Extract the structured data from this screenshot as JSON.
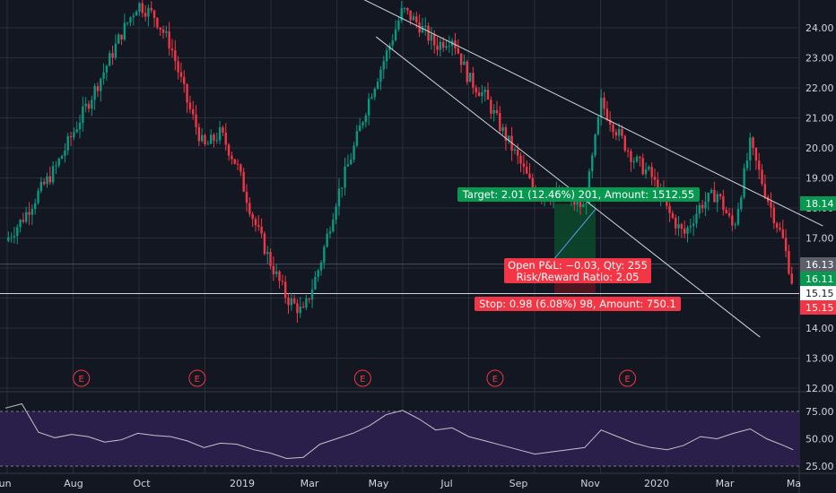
{
  "chart_data": {
    "type": "candlestick",
    "x_axis": {
      "ticks": [
        "Jun",
        "Aug",
        "Oct",
        "2019",
        "Mar",
        "May",
        "Jul",
        "Sep",
        "Nov",
        "2020",
        "Mar",
        "Ma"
      ]
    },
    "price_axis": {
      "ylim": [
        12.0,
        25.0
      ],
      "ticks": [
        "24.00",
        "23.00",
        "22.00",
        "21.00",
        "20.00",
        "19.00",
        "18.00",
        "17.00",
        "16.00",
        "15.00",
        "14.00",
        "13.00",
        "12.00"
      ],
      "price_labels": [
        {
          "text": "18.14",
          "value": 18.14,
          "color": "#089950"
        },
        {
          "text": "16.13",
          "value": 16.13,
          "color": "#5d606b"
        },
        {
          "text": "16.11",
          "value": 16.11,
          "color": "#089950"
        },
        {
          "text": "15.15",
          "value": 15.15,
          "color": "#ffffff"
        },
        {
          "text": "15.15",
          "value": 15.15,
          "color": "#f23645"
        }
      ]
    },
    "price_series": [
      [
        0,
        16.9
      ],
      [
        0.5,
        17.6
      ],
      [
        1,
        18.5
      ],
      [
        1.5,
        19.3
      ],
      [
        2,
        20.4
      ],
      [
        2.5,
        21.5
      ],
      [
        3,
        22.6
      ],
      [
        3.5,
        23.8
      ],
      [
        4,
        24.8
      ],
      [
        4.5,
        24.4
      ],
      [
        5,
        23.4
      ],
      [
        5.5,
        21.5
      ],
      [
        6,
        20.0
      ],
      [
        6.5,
        20.5
      ],
      [
        7,
        19.4
      ],
      [
        7.5,
        17.6
      ],
      [
        8,
        16.2
      ],
      [
        8.5,
        15.0
      ],
      [
        9,
        14.5
      ],
      [
        9.5,
        16.1
      ],
      [
        10,
        18.3
      ],
      [
        10.5,
        19.9
      ],
      [
        11,
        21.7
      ],
      [
        11.5,
        23.1
      ],
      [
        12,
        24.6
      ],
      [
        12.5,
        24.1
      ],
      [
        13,
        23.4
      ],
      [
        13.5,
        23.7
      ],
      [
        14,
        22.3
      ],
      [
        14.5,
        21.7
      ],
      [
        15,
        20.6
      ],
      [
        15.5,
        19.6
      ],
      [
        16,
        18.5
      ],
      [
        16.5,
        18.4
      ],
      [
        17,
        18.3
      ],
      [
        17.5,
        18.0
      ],
      [
        18,
        21.5
      ],
      [
        18.5,
        20.5
      ],
      [
        19,
        19.6
      ],
      [
        19.5,
        19.1
      ],
      [
        20,
        17.9
      ],
      [
        20.5,
        17.1
      ],
      [
        21,
        18.1
      ],
      [
        21.5,
        18.5
      ],
      [
        22,
        17.3
      ],
      [
        22.5,
        20.1
      ],
      [
        23,
        18.4
      ],
      [
        23.5,
        16.9
      ],
      [
        23.8,
        15.4
      ]
    ],
    "trend_lines": [
      {
        "name": "upper",
        "points": [
          [
            9.8,
            25.5
          ],
          [
            24.7,
            17.4
          ]
        ]
      },
      {
        "name": "lower",
        "points": [
          [
            11.2,
            23.7
          ],
          [
            22.8,
            13.7
          ]
        ]
      }
    ],
    "horizontal_lines": [
      15.15,
      16.13
    ],
    "position": {
      "entry": 16.13,
      "target": 18.14,
      "stop": 15.15,
      "target_label": "Target: 2.01 (12.46%) 201, Amount: 1512.55",
      "stop_label": "Stop: 0.98 (6.08%) 98, Amount: 750.1",
      "info_label_1": "Open P&L: −0.03, Qty: 255",
      "info_label_2": "Risk/Reward Ratio: 2.05"
    },
    "earnings_markers": [
      {
        "x": 3,
        "label": "E"
      },
      {
        "x": 6.5,
        "label": "E"
      },
      {
        "x": 11.5,
        "label": "E"
      },
      {
        "x": 15.5,
        "label": "E"
      },
      {
        "x": 19.5,
        "label": "E"
      }
    ],
    "rsi": {
      "ylim": [
        20,
        90
      ],
      "ticks": [
        "75.00",
        "50.00",
        "25.00"
      ],
      "upper_band": 75,
      "lower_band": 25,
      "series": [
        [
          0,
          78
        ],
        [
          0.5,
          82
        ],
        [
          1,
          56
        ],
        [
          1.5,
          51
        ],
        [
          2,
          54
        ],
        [
          2.5,
          52
        ],
        [
          3,
          47
        ],
        [
          3.5,
          49
        ],
        [
          4,
          55
        ],
        [
          4.5,
          53
        ],
        [
          5,
          52
        ],
        [
          5.5,
          48
        ],
        [
          6,
          42
        ],
        [
          6.5,
          46
        ],
        [
          7,
          45
        ],
        [
          7.5,
          40
        ],
        [
          8,
          37
        ],
        [
          8.5,
          32
        ],
        [
          9,
          33
        ],
        [
          9.5,
          45
        ],
        [
          10,
          50
        ],
        [
          10.5,
          55
        ],
        [
          11,
          62
        ],
        [
          11.5,
          72
        ],
        [
          12,
          76
        ],
        [
          12.5,
          68
        ],
        [
          13,
          58
        ],
        [
          13.5,
          60
        ],
        [
          14,
          52
        ],
        [
          14.5,
          48
        ],
        [
          15,
          44
        ],
        [
          15.5,
          40
        ],
        [
          16,
          36
        ],
        [
          16.5,
          38
        ],
        [
          17,
          40
        ],
        [
          17.5,
          42
        ],
        [
          18,
          58
        ],
        [
          18.5,
          52
        ],
        [
          19,
          46
        ],
        [
          19.5,
          42
        ],
        [
          20,
          40
        ],
        [
          20.5,
          44
        ],
        [
          21,
          52
        ],
        [
          21.5,
          50
        ],
        [
          22,
          55
        ],
        [
          22.5,
          59
        ],
        [
          23,
          50
        ],
        [
          23.5,
          44
        ],
        [
          23.8,
          40
        ]
      ]
    }
  },
  "colors": {
    "background": "#131722",
    "grid": "#2a2e39",
    "up": "#089981",
    "down": "#f23645",
    "trend": "#d1d4dc",
    "target_zone": "#0b4a2a",
    "stop_zone": "#5a1620",
    "target_label": "#089950",
    "stop_label": "#f23645",
    "rsi_line": "#c3c3c8",
    "rsi_band": "#2a1f4a"
  }
}
